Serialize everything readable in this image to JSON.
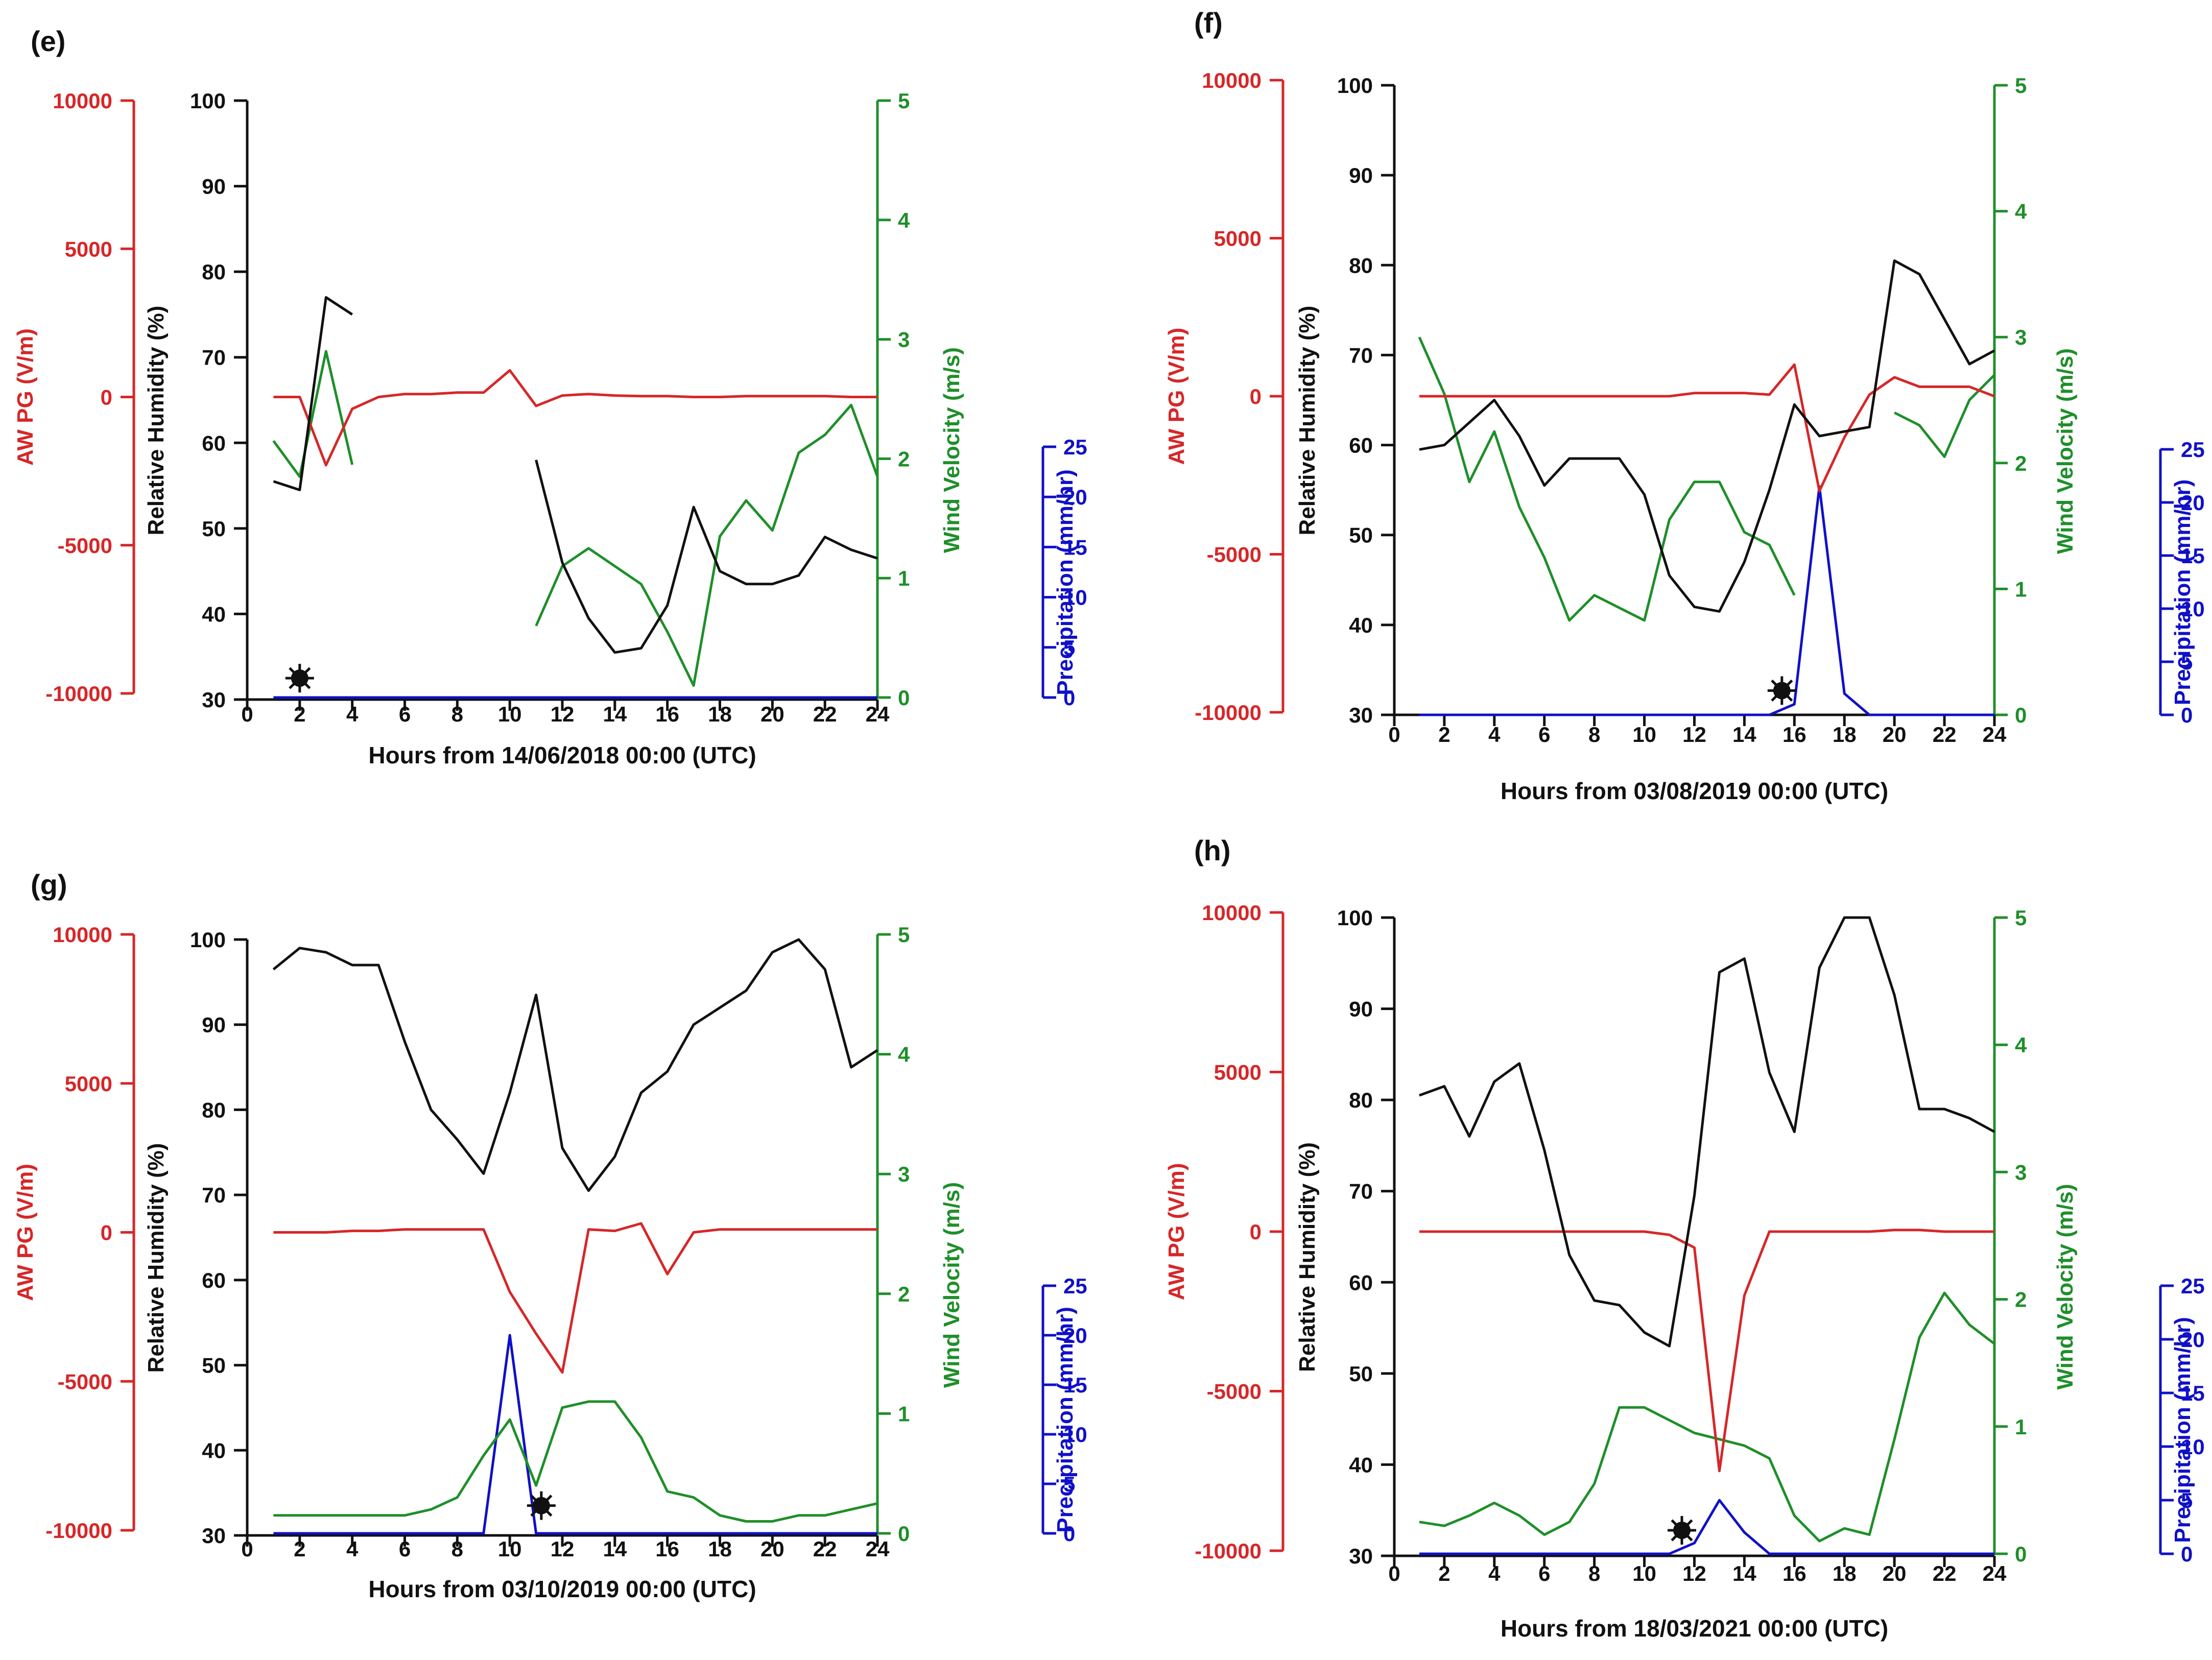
{
  "colors": {
    "apg": "#d62728",
    "rh": "#111111",
    "wind": "#1f8f2a",
    "precip": "#1010c8",
    "marker": "#111111"
  },
  "axis_titles": {
    "apg": "AW PG (V/m)",
    "rh": "Relative Humidity (%)",
    "wind": "Wind Velocity (m/s)",
    "precip": "Precipitation (mm/hr)"
  },
  "chart_data": [
    {
      "type": "line",
      "panel_label": "(e)",
      "xlabel": "Hours from 14/06/2018 00:00 (UTC)",
      "x_ticks": [
        "0",
        "2",
        "4",
        "6",
        "8",
        "10",
        "12",
        "14",
        "16",
        "18",
        "20",
        "22",
        "24"
      ],
      "xlim": [
        0,
        24
      ],
      "apg_ticks": [
        "10000",
        "5000",
        "0",
        "-5000",
        "-10000"
      ],
      "rh_ticks": [
        "100",
        "90",
        "80",
        "70",
        "60",
        "50",
        "40",
        "30"
      ],
      "wind_ticks": [
        "5",
        "4",
        "3",
        "2",
        "1",
        "0"
      ],
      "precip_ticks": [
        "25",
        "20",
        "15",
        "10",
        "5",
        "0"
      ],
      "ylim_apg": [
        -10000,
        10000
      ],
      "ylim_rh": [
        30,
        100
      ],
      "ylim_wind": [
        0,
        5
      ],
      "ylim_precip": [
        0,
        25
      ],
      "rh": [
        [
          1,
          55.5
        ],
        [
          2,
          54.5
        ],
        [
          3,
          77
        ],
        [
          4,
          75
        ],
        null,
        [
          11,
          58
        ],
        [
          12,
          46
        ],
        [
          13,
          39.5
        ],
        [
          14,
          35.5
        ],
        [
          15,
          36
        ],
        [
          16,
          41
        ],
        [
          17,
          52.5
        ],
        [
          18,
          45
        ],
        [
          19,
          43.5
        ],
        [
          20,
          43.5
        ],
        [
          21,
          44.5
        ],
        [
          22,
          49
        ],
        [
          23,
          47.5
        ],
        [
          24,
          46.5
        ]
      ],
      "apg": [
        [
          1,
          0
        ],
        [
          2,
          0
        ],
        [
          3,
          -2300
        ],
        [
          4,
          -400
        ],
        [
          5,
          0
        ],
        [
          6,
          100
        ],
        [
          7,
          100
        ],
        [
          8,
          150
        ],
        [
          9,
          150
        ],
        [
          10,
          900
        ],
        [
          11,
          -300
        ],
        [
          12,
          50
        ],
        [
          13,
          100
        ],
        [
          14,
          50
        ],
        [
          15,
          30
        ],
        [
          16,
          30
        ],
        [
          17,
          0
        ],
        [
          18,
          0
        ],
        [
          19,
          30
        ],
        [
          20,
          30
        ],
        [
          21,
          30
        ],
        [
          22,
          30
        ],
        [
          23,
          0
        ],
        [
          24,
          0
        ]
      ],
      "wind": [
        [
          1,
          2.15
        ],
        [
          2,
          1.85
        ],
        [
          3,
          2.9
        ],
        [
          4,
          1.95
        ],
        null,
        [
          11,
          0.6
        ],
        [
          12,
          1.1
        ],
        [
          13,
          1.25
        ],
        [
          14,
          1.1
        ],
        [
          15,
          0.95
        ],
        [
          16,
          0.55
        ],
        [
          17,
          0.1
        ],
        [
          18,
          1.35
        ],
        [
          19,
          1.65
        ],
        [
          20,
          1.4
        ],
        [
          21,
          2.05
        ],
        [
          22,
          2.2
        ],
        [
          23,
          2.45
        ],
        [
          24,
          1.85
        ]
      ],
      "precip": [
        [
          1,
          0
        ],
        [
          24,
          0
        ]
      ],
      "marker": [
        2,
        32.5
      ]
    },
    {
      "type": "line",
      "panel_label": "(f)",
      "xlabel": "Hours from 03/08/2019 00:00 (UTC)",
      "x_ticks": [
        "0",
        "2",
        "4",
        "6",
        "8",
        "10",
        "12",
        "14",
        "16",
        "18",
        "20",
        "22",
        "24"
      ],
      "xlim": [
        0,
        24
      ],
      "apg_ticks": [
        "10000",
        "5000",
        "0",
        "-5000",
        "-10000"
      ],
      "rh_ticks": [
        "100",
        "90",
        "80",
        "70",
        "60",
        "50",
        "40",
        "30"
      ],
      "wind_ticks": [
        "5",
        "4",
        "3",
        "2",
        "1",
        "0"
      ],
      "precip_ticks": [
        "25",
        "20",
        "15",
        "10",
        "5",
        "0"
      ],
      "ylim_apg": [
        -10000,
        10000
      ],
      "ylim_rh": [
        30,
        100
      ],
      "ylim_wind": [
        0,
        5
      ],
      "ylim_precip": [
        0,
        25
      ],
      "rh": [
        [
          1,
          59.5
        ],
        [
          2,
          60
        ],
        [
          3,
          62.5
        ],
        [
          4,
          65
        ],
        [
          5,
          61
        ],
        [
          6,
          55.5
        ],
        [
          7,
          58.5
        ],
        [
          8,
          58.5
        ],
        [
          9,
          58.5
        ],
        [
          10,
          54.5
        ],
        [
          11,
          45.5
        ],
        [
          12,
          42
        ],
        [
          13,
          41.5
        ],
        [
          14,
          47
        ],
        [
          15,
          55
        ],
        [
          16,
          64.5
        ],
        [
          17,
          61
        ],
        [
          18,
          61.5
        ],
        [
          19,
          62
        ],
        [
          20,
          80.5
        ],
        [
          21,
          79
        ],
        [
          22,
          74
        ],
        [
          23,
          69
        ],
        [
          24,
          70.5
        ]
      ],
      "apg": [
        [
          1,
          0
        ],
        [
          2,
          0
        ],
        [
          3,
          0
        ],
        [
          4,
          0
        ],
        [
          5,
          0
        ],
        [
          6,
          0
        ],
        [
          7,
          0
        ],
        [
          8,
          0
        ],
        [
          9,
          0
        ],
        [
          10,
          0
        ],
        [
          11,
          0
        ],
        [
          12,
          100
        ],
        [
          13,
          100
        ],
        [
          14,
          100
        ],
        [
          15,
          50
        ],
        [
          16,
          1000
        ],
        [
          17,
          -3000
        ],
        [
          18,
          -1300
        ],
        [
          19,
          50
        ],
        [
          20,
          600
        ],
        [
          21,
          300
        ],
        [
          22,
          300
        ],
        [
          23,
          300
        ],
        [
          24,
          0
        ]
      ],
      "wind": [
        [
          1,
          3.0
        ],
        [
          2,
          2.55
        ],
        [
          3,
          1.85
        ],
        [
          4,
          2.25
        ],
        [
          5,
          1.65
        ],
        [
          6,
          1.25
        ],
        [
          7,
          0.75
        ],
        [
          8,
          0.95
        ],
        [
          9,
          0.85
        ],
        [
          10,
          0.75
        ],
        [
          11,
          1.55
        ],
        [
          12,
          1.85
        ],
        [
          13,
          1.85
        ],
        [
          14,
          1.45
        ],
        [
          15,
          1.35
        ],
        [
          16,
          0.95
        ],
        null,
        [
          20,
          2.4
        ],
        [
          21,
          2.3
        ],
        [
          22,
          2.05
        ],
        [
          23,
          2.5
        ],
        [
          24,
          2.7
        ]
      ],
      "precip": [
        [
          1,
          0
        ],
        [
          7,
          0
        ],
        [
          8,
          0
        ],
        [
          15,
          0
        ],
        [
          16,
          1
        ],
        [
          17,
          21.5
        ],
        [
          18,
          2
        ],
        [
          19,
          0
        ],
        [
          24,
          0
        ]
      ],
      "marker": [
        15.5,
        32.7
      ]
    },
    {
      "type": "line",
      "panel_label": "(g)",
      "xlabel": "Hours from 03/10/2019 00:00 (UTC)",
      "x_ticks": [
        "0",
        "2",
        "4",
        "6",
        "8",
        "10",
        "12",
        "14",
        "16",
        "18",
        "20",
        "22",
        "24"
      ],
      "xlim": [
        0,
        24
      ],
      "apg_ticks": [
        "10000",
        "5000",
        "0",
        "-5000",
        "-10000"
      ],
      "rh_ticks": [
        "100",
        "90",
        "80",
        "70",
        "60",
        "50",
        "40",
        "30"
      ],
      "wind_ticks": [
        "5",
        "4",
        "3",
        "2",
        "1",
        "0"
      ],
      "precip_ticks": [
        "25",
        "20",
        "15",
        "10",
        "5",
        "0"
      ],
      "ylim_apg": [
        -10000,
        10000
      ],
      "ylim_rh": [
        30,
        100
      ],
      "ylim_wind": [
        0,
        5
      ],
      "ylim_precip": [
        0,
        25
      ],
      "rh": [
        [
          1,
          96.5
        ],
        [
          2,
          99
        ],
        [
          3,
          98.5
        ],
        [
          4,
          97
        ],
        [
          5,
          97
        ],
        [
          6,
          88
        ],
        [
          7,
          80
        ],
        [
          8,
          76.5
        ],
        [
          9,
          72.5
        ],
        [
          10,
          82
        ],
        [
          11,
          93.5
        ],
        [
          12,
          75.5
        ],
        [
          13,
          70.5
        ],
        [
          14,
          74.5
        ],
        [
          15,
          82
        ],
        [
          16,
          84.5
        ],
        [
          17,
          90
        ],
        [
          18,
          92
        ],
        [
          19,
          94
        ],
        [
          20,
          98.5
        ],
        [
          21,
          100
        ],
        [
          22,
          96.5
        ],
        [
          23,
          85
        ],
        [
          24,
          87
        ]
      ],
      "apg": [
        [
          1,
          0
        ],
        [
          2,
          0
        ],
        [
          3,
          0
        ],
        [
          4,
          50
        ],
        [
          5,
          50
        ],
        [
          6,
          100
        ],
        [
          7,
          100
        ],
        [
          8,
          100
        ],
        [
          9,
          100
        ],
        [
          10,
          -2000
        ],
        [
          11,
          -3400
        ],
        [
          12,
          -4700
        ],
        [
          13,
          100
        ],
        [
          14,
          50
        ],
        [
          15,
          300
        ],
        [
          16,
          -1400
        ],
        [
          17,
          0
        ],
        [
          18,
          100
        ],
        [
          19,
          100
        ],
        [
          20,
          100
        ],
        [
          21,
          100
        ],
        [
          22,
          100
        ],
        [
          23,
          100
        ],
        [
          24,
          100
        ]
      ],
      "wind": [
        [
          1,
          0.15
        ],
        [
          2,
          0.15
        ],
        [
          3,
          0.15
        ],
        [
          4,
          0.15
        ],
        [
          5,
          0.15
        ],
        [
          6,
          0.15
        ],
        [
          7,
          0.2
        ],
        [
          8,
          0.3
        ],
        [
          9,
          0.65
        ],
        [
          10,
          0.95
        ],
        [
          11,
          0.4
        ],
        [
          12,
          1.05
        ],
        [
          13,
          1.1
        ],
        [
          14,
          1.1
        ],
        [
          15,
          0.8
        ],
        [
          16,
          0.35
        ],
        [
          17,
          0.3
        ],
        [
          18,
          0.15
        ],
        [
          19,
          0.1
        ],
        [
          20,
          0.1
        ],
        [
          21,
          0.15
        ],
        [
          22,
          0.15
        ],
        [
          23,
          0.2
        ],
        [
          24,
          0.25
        ]
      ],
      "precip": [
        [
          1,
          0
        ],
        [
          9,
          0
        ],
        [
          10,
          20
        ],
        [
          11,
          0
        ],
        [
          24,
          0
        ]
      ],
      "marker": [
        11.2,
        33.5
      ]
    },
    {
      "type": "line",
      "panel_label": "(h)",
      "xlabel": "Hours from 18/03/2021 00:00 (UTC)",
      "x_ticks": [
        "0",
        "2",
        "4",
        "6",
        "8",
        "10",
        "12",
        "14",
        "16",
        "18",
        "20",
        "22",
        "24"
      ],
      "xlim": [
        0,
        24
      ],
      "apg_ticks": [
        "10000",
        "5000",
        "0",
        "-5000",
        "-10000"
      ],
      "rh_ticks": [
        "100",
        "90",
        "80",
        "70",
        "60",
        "50",
        "40",
        "30"
      ],
      "wind_ticks": [
        "5",
        "4",
        "3",
        "2",
        "1",
        "0"
      ],
      "precip_ticks": [
        "25",
        "20",
        "15",
        "10",
        "5",
        "0"
      ],
      "ylim_apg": [
        -10000,
        10000
      ],
      "ylim_rh": [
        30,
        100
      ],
      "ylim_wind": [
        0,
        5
      ],
      "ylim_precip": [
        0,
        25
      ],
      "rh": [
        [
          1,
          80.5
        ],
        [
          2,
          81.5
        ],
        [
          3,
          76
        ],
        [
          4,
          82
        ],
        [
          5,
          84
        ],
        [
          6,
          74.5
        ],
        [
          7,
          63
        ],
        [
          8,
          58
        ],
        [
          9,
          57.5
        ],
        [
          10,
          54.5
        ],
        [
          11,
          53
        ],
        [
          12,
          69.5
        ],
        [
          13,
          94
        ],
        [
          14,
          95.5
        ],
        [
          15,
          83
        ],
        [
          16,
          76.5
        ],
        [
          17,
          94.5
        ],
        [
          18,
          100
        ],
        [
          19,
          100
        ],
        [
          20,
          91.5
        ],
        [
          21,
          79
        ],
        [
          22,
          79
        ],
        [
          23,
          78
        ],
        [
          24,
          76.5
        ]
      ],
      "apg": [
        [
          1,
          0
        ],
        [
          2,
          0
        ],
        [
          3,
          0
        ],
        [
          4,
          0
        ],
        [
          5,
          0
        ],
        [
          6,
          0
        ],
        [
          7,
          0
        ],
        [
          8,
          0
        ],
        [
          9,
          0
        ],
        [
          10,
          0
        ],
        [
          11,
          -100
        ],
        [
          12,
          -500
        ],
        [
          13,
          -7500
        ],
        [
          14,
          -2000
        ],
        [
          15,
          0
        ],
        [
          16,
          0
        ],
        [
          17,
          0
        ],
        [
          18,
          0
        ],
        [
          19,
          0
        ],
        [
          20,
          50
        ],
        [
          21,
          50
        ],
        [
          22,
          0
        ],
        [
          23,
          0
        ],
        [
          24,
          0
        ]
      ],
      "wind": [
        [
          1,
          0.25
        ],
        [
          2,
          0.22
        ],
        [
          3,
          0.3
        ],
        [
          4,
          0.4
        ],
        [
          5,
          0.3
        ],
        [
          6,
          0.15
        ],
        [
          7,
          0.25
        ],
        [
          8,
          0.55
        ],
        [
          9,
          1.15
        ],
        [
          10,
          1.15
        ],
        [
          11,
          1.05
        ],
        [
          12,
          0.95
        ],
        [
          13,
          0.9
        ],
        [
          14,
          0.85
        ],
        [
          15,
          0.75
        ],
        [
          16,
          0.3
        ],
        [
          17,
          0.1
        ],
        [
          18,
          0.2
        ],
        [
          19,
          0.15
        ],
        [
          20,
          0.9
        ],
        [
          21,
          1.7
        ],
        [
          22,
          2.05
        ],
        [
          23,
          1.8
        ],
        [
          24,
          1.65
        ]
      ],
      "precip": [
        [
          1,
          0
        ],
        [
          11,
          0
        ],
        [
          12,
          1
        ],
        [
          13,
          5
        ],
        [
          14,
          2
        ],
        [
          15,
          0
        ],
        [
          24,
          0
        ]
      ],
      "marker": [
        11.5,
        32.8
      ]
    }
  ]
}
